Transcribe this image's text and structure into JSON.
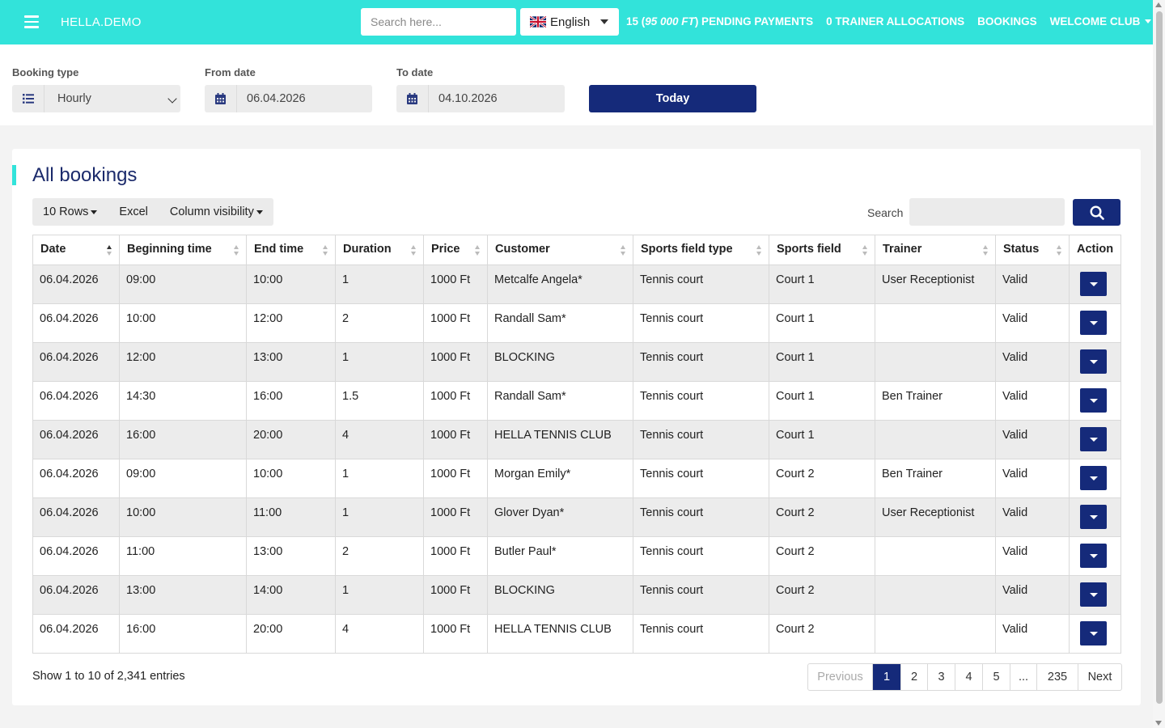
{
  "header": {
    "brand": "HELLA.DEMO",
    "search_placeholder": "Search here...",
    "language": "English",
    "pending_count": "15 (",
    "pending_amount": "95 000 FT",
    "pending_suffix": ") PENDING PAYMENTS",
    "trainer_allocations": "0 TRAINER ALLOCATIONS",
    "bookings": "BOOKINGS",
    "welcome": "WELCOME CLUB"
  },
  "filters": {
    "booking_type_label": "Booking type",
    "booking_type_value": "Hourly",
    "from_date_label": "From date",
    "from_date_value": "06.04.2026",
    "to_date_label": "To date",
    "to_date_value": "04.10.2026",
    "today_button": "Today"
  },
  "card": {
    "title": "All bookings",
    "rows_button": "10 Rows",
    "excel_button": "Excel",
    "column_visibility_button": "Column visibility",
    "search_label": "Search"
  },
  "table": {
    "columns": [
      "Date",
      "Beginning time",
      "End time",
      "Duration",
      "Price",
      "Customer",
      "Sports field type",
      "Sports field",
      "Trainer",
      "Status",
      "Action"
    ],
    "rows": [
      [
        "06.04.2026",
        "09:00",
        "10:00",
        "1",
        "1000 Ft",
        "Metcalfe Angela*",
        "Tennis court",
        "Court 1",
        "User Receptionist",
        "Valid"
      ],
      [
        "06.04.2026",
        "10:00",
        "12:00",
        "2",
        "1000 Ft",
        "Randall Sam*",
        "Tennis court",
        "Court 1",
        "",
        "Valid"
      ],
      [
        "06.04.2026",
        "12:00",
        "13:00",
        "1",
        "1000 Ft",
        "BLOCKING",
        "Tennis court",
        "Court 1",
        "",
        "Valid"
      ],
      [
        "06.04.2026",
        "14:30",
        "16:00",
        "1.5",
        "1000 Ft",
        "Randall Sam*",
        "Tennis court",
        "Court 1",
        "Ben Trainer",
        "Valid"
      ],
      [
        "06.04.2026",
        "16:00",
        "20:00",
        "4",
        "1000 Ft",
        "HELLA TENNIS CLUB",
        "Tennis court",
        "Court 1",
        "",
        "Valid"
      ],
      [
        "06.04.2026",
        "09:00",
        "10:00",
        "1",
        "1000 Ft",
        "Morgan Emily*",
        "Tennis court",
        "Court 2",
        "Ben Trainer",
        "Valid"
      ],
      [
        "06.04.2026",
        "10:00",
        "11:00",
        "1",
        "1000 Ft",
        "Glover Dyan*",
        "Tennis court",
        "Court 2",
        "User Receptionist",
        "Valid"
      ],
      [
        "06.04.2026",
        "11:00",
        "13:00",
        "2",
        "1000 Ft",
        "Butler Paul*",
        "Tennis court",
        "Court 2",
        "",
        "Valid"
      ],
      [
        "06.04.2026",
        "13:00",
        "14:00",
        "1",
        "1000 Ft",
        "BLOCKING",
        "Tennis court",
        "Court 2",
        "",
        "Valid"
      ],
      [
        "06.04.2026",
        "16:00",
        "20:00",
        "4",
        "1000 Ft",
        "HELLA TENNIS CLUB",
        "Tennis court",
        "Court 2",
        "",
        "Valid"
      ]
    ]
  },
  "footer": {
    "info": "Show 1 to 10 of 2,341 entries",
    "pagination": [
      "Previous",
      "1",
      "2",
      "3",
      "4",
      "5",
      "...",
      "235",
      "Next"
    ],
    "active_page": "1"
  },
  "colors": {
    "header_bg": "#32e3da",
    "primary": "#152a7a",
    "title": "#1b2a6b"
  },
  "icons": {
    "menu": "hamburger-icon",
    "list": "list-icon",
    "calendar": "calendar-icon",
    "search": "search-icon",
    "flag": "uk-flag-icon"
  }
}
